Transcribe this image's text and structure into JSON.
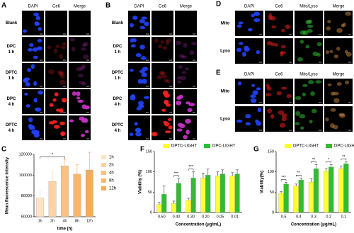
{
  "image_panels": [
    {
      "label": "A",
      "columns": [
        "DAPI",
        "Ce6",
        "Merge"
      ],
      "rows": [
        [
          "Blank"
        ],
        [
          "DPC",
          "1 h"
        ],
        [
          "DPTC",
          "1 h"
        ],
        [
          "DPC",
          "4 h"
        ],
        [
          "DPTC",
          "4 h"
        ]
      ]
    },
    {
      "label": "B",
      "columns": [
        "DAPI",
        "Ce6",
        "Merge"
      ],
      "rows": [
        [
          "Blank"
        ],
        [
          "DPC",
          "1 h"
        ],
        [
          "DPTC",
          "1 h"
        ],
        [
          "DPC",
          "4 h"
        ],
        [
          "DPTC",
          "4 h"
        ]
      ]
    },
    {
      "label": "D",
      "columns": [
        "DAPI",
        "Ce6",
        "Mito/Lyso",
        "Merge"
      ],
      "rows": [
        [
          "Mito"
        ],
        [
          "Lyso"
        ]
      ]
    },
    {
      "label": "E",
      "columns": [
        "DAPI",
        "Ce6",
        "Mito/Lyso",
        "Merge"
      ],
      "rows": [
        [
          "Mito"
        ],
        [
          "Lyso"
        ]
      ]
    }
  ],
  "chart_data": [
    {
      "type": "bar",
      "label": "C",
      "ylabel": "Mean fluorescence intensity",
      "xlabel": "time (h)",
      "categories": [
        "1h",
        "2h",
        "4h",
        "8h",
        "12h"
      ],
      "series": [
        {
          "colors": [
            "#fde3c4",
            "#fcd3a3",
            "#f9c282",
            "#f7b66c",
            "#f5ab5a"
          ],
          "values": [
            78000,
            94000,
            109000,
            101000,
            105000
          ],
          "errors": [
            7000,
            10000,
            6000,
            9000,
            17000
          ]
        }
      ],
      "ylim": [
        60000,
        120000
      ],
      "yticks": [
        60000,
        80000,
        100000,
        120000
      ],
      "annotations": [
        {
          "text": "*",
          "between": [
            "1h",
            "4h"
          ]
        }
      ]
    },
    {
      "type": "bar",
      "label": "F",
      "ylabel": "Viability (%)",
      "xlabel": "Concentration (μg/mL)",
      "categories": [
        "0.50",
        "0.40",
        "0.30",
        "0.20",
        "0.05",
        "0.01"
      ],
      "series": [
        {
          "name": "DPTC-LIGHT",
          "color": "#ffff33",
          "values": [
            20,
            22,
            30,
            85,
            90,
            90
          ],
          "errors": [
            5,
            6,
            5,
            12,
            10,
            8
          ]
        },
        {
          "name": "DPC-LIGHT",
          "color": "#33bb33",
          "values": [
            45,
            72,
            85,
            92,
            95,
            95
          ],
          "errors": [
            20,
            12,
            15,
            15,
            10,
            10
          ]
        }
      ],
      "ylim": [
        0,
        150
      ],
      "yticks": [
        0,
        50,
        100,
        150
      ],
      "significance": [
        null,
        "***",
        "***",
        null,
        null,
        null
      ]
    },
    {
      "type": "bar",
      "label": "G",
      "ylabel": "Viability(%)",
      "xlabel": "Concentration (μg/mL)",
      "categories": [
        "0.5",
        "0.4",
        "0.3",
        "0.2",
        "0.1"
      ],
      "series": [
        {
          "name": "DPTC-LIGHT",
          "color": "#ffff33",
          "values": [
            48,
            65,
            75,
            102,
            108
          ],
          "errors": [
            4,
            5,
            8,
            6,
            6
          ]
        },
        {
          "name": "DPC-LIGHT",
          "color": "#33bb33",
          "values": [
            70,
            80,
            108,
            112,
            120
          ],
          "errors": [
            4,
            5,
            10,
            6,
            5
          ]
        }
      ],
      "ylim": [
        0,
        150
      ],
      "yticks": [
        0,
        50,
        100,
        150
      ],
      "significance": [
        "***",
        "**",
        "**",
        "*",
        "**"
      ]
    }
  ]
}
